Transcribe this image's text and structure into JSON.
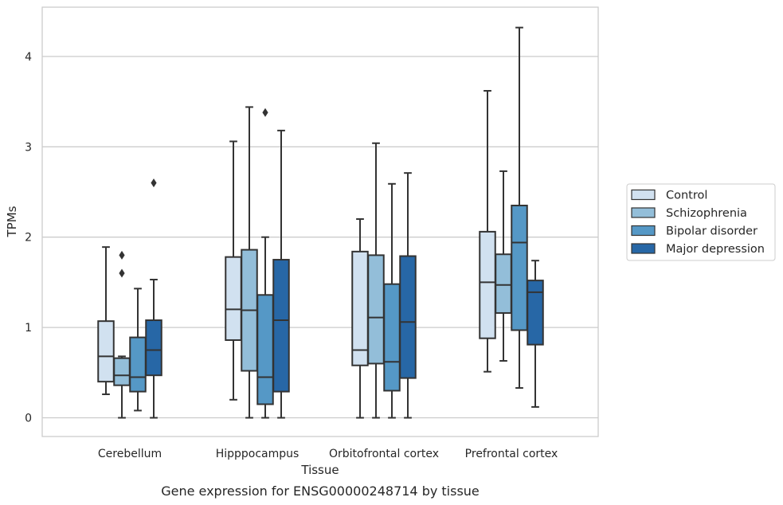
{
  "chart_data": {
    "type": "boxplot",
    "title": "",
    "caption": "Gene expression for ENSG00000248714 by tissue",
    "xlabel": "Tissue",
    "ylabel": "TPMs",
    "ylim": [
      -0.2,
      4.55
    ],
    "yticks": [
      0,
      1,
      2,
      3,
      4
    ],
    "grid": "horizontal",
    "legend_position": "right",
    "categories": [
      "Cerebellum",
      "Hipppocampus",
      "Orbitofrontal cortex",
      "Prefrontal cortex"
    ],
    "series": [
      {
        "name": "Control",
        "color": "#d1e1f0",
        "boxes": [
          {
            "whisker_low": 0.26,
            "q1": 0.4,
            "median": 0.68,
            "q3": 1.07,
            "whisker_high": 1.89,
            "outliers": []
          },
          {
            "whisker_low": 0.2,
            "q1": 0.86,
            "median": 1.2,
            "q3": 1.78,
            "whisker_high": 3.06,
            "outliers": []
          },
          {
            "whisker_low": 0.0,
            "q1": 0.58,
            "median": 0.75,
            "q3": 1.84,
            "whisker_high": 2.2,
            "outliers": []
          },
          {
            "whisker_low": 0.51,
            "q1": 0.88,
            "median": 1.5,
            "q3": 2.06,
            "whisker_high": 3.62,
            "outliers": []
          }
        ]
      },
      {
        "name": "Schizophrenia",
        "color": "#93bed9",
        "boxes": [
          {
            "whisker_low": 0.0,
            "q1": 0.36,
            "median": 0.47,
            "q3": 0.66,
            "whisker_high": 0.68,
            "outliers": [
              1.6,
              1.8
            ]
          },
          {
            "whisker_low": 0.0,
            "q1": 0.52,
            "median": 1.19,
            "q3": 1.86,
            "whisker_high": 3.44,
            "outliers": []
          },
          {
            "whisker_low": 0.0,
            "q1": 0.6,
            "median": 1.11,
            "q3": 1.8,
            "whisker_high": 3.04,
            "outliers": []
          },
          {
            "whisker_low": 0.63,
            "q1": 1.16,
            "median": 1.47,
            "q3": 1.81,
            "whisker_high": 2.73,
            "outliers": []
          }
        ]
      },
      {
        "name": "Bipolar disorder",
        "color": "#5598c6",
        "boxes": [
          {
            "whisker_low": 0.08,
            "q1": 0.29,
            "median": 0.45,
            "q3": 0.89,
            "whisker_high": 1.43,
            "outliers": []
          },
          {
            "whisker_low": 0.0,
            "q1": 0.15,
            "median": 0.45,
            "q3": 1.36,
            "whisker_high": 2.0,
            "outliers": [
              3.38
            ]
          },
          {
            "whisker_low": 0.0,
            "q1": 0.3,
            "median": 0.62,
            "q3": 1.48,
            "whisker_high": 2.59,
            "outliers": []
          },
          {
            "whisker_low": 0.33,
            "q1": 0.97,
            "median": 1.94,
            "q3": 2.35,
            "whisker_high": 4.32,
            "outliers": []
          }
        ]
      },
      {
        "name": "Major depression",
        "color": "#2767a6",
        "boxes": [
          {
            "whisker_low": 0.0,
            "q1": 0.47,
            "median": 0.75,
            "q3": 1.08,
            "whisker_high": 1.53,
            "outliers": [
              2.6
            ]
          },
          {
            "whisker_low": 0.0,
            "q1": 0.29,
            "median": 1.08,
            "q3": 1.75,
            "whisker_high": 3.18,
            "outliers": []
          },
          {
            "whisker_low": 0.0,
            "q1": 0.44,
            "median": 1.06,
            "q3": 1.79,
            "whisker_high": 2.71,
            "outliers": []
          },
          {
            "whisker_low": 0.12,
            "q1": 0.81,
            "median": 1.39,
            "q3": 1.52,
            "whisker_high": 1.74,
            "outliers": []
          }
        ]
      }
    ]
  }
}
